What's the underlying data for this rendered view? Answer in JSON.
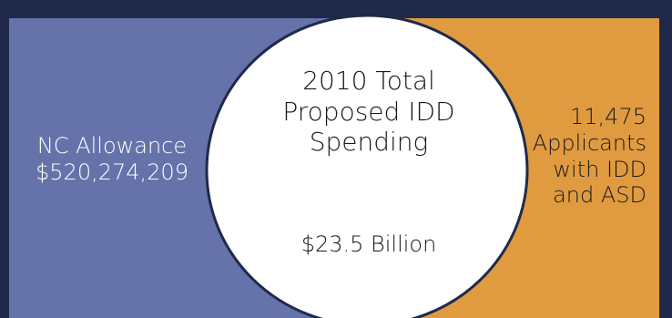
{
  "colors": {
    "left_fill": "#6573aa",
    "right_fill": "#e09b40",
    "center_fill": "#ffffff",
    "frame": "#1f2a4a",
    "left_text": "#ffffff",
    "right_text": "#1a1a1a"
  },
  "left_region": {
    "line1": "NC Allowance",
    "line2": "$520,274,209"
  },
  "center_region": {
    "line1": "2010 Total",
    "line2": "Proposed IDD",
    "line3": "Spending",
    "total": "$23.5 Billion"
  },
  "right_region": {
    "line1": "11,475",
    "line2": "Applicants",
    "line3": "with IDD",
    "line4": "and ASD"
  }
}
